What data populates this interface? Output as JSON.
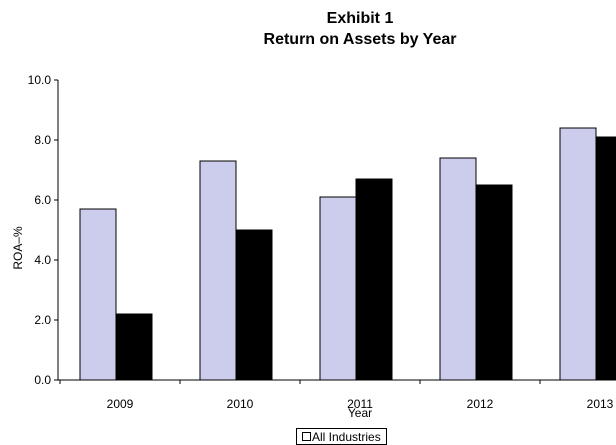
{
  "chart_data": {
    "type": "bar",
    "title_line1": "Exhibit 1",
    "title_line2": "Return on Assets by Year",
    "xlabel": "Year",
    "ylabel": "ROA–%",
    "ylim": [
      0,
      10
    ],
    "yticks": [
      "0.0",
      "2.0",
      "4.0",
      "6.0",
      "8.0",
      "10.0"
    ],
    "categories": [
      "2009",
      "2010",
      "2011",
      "2012",
      "2013"
    ],
    "series": [
      {
        "name": "All Industries",
        "values": [
          5.7,
          7.3,
          6.1,
          7.4,
          8.4
        ],
        "color": "#ccccec"
      },
      {
        "values": [
          2.2,
          5.0,
          6.7,
          6.5,
          8.1
        ],
        "color": "#000000"
      }
    ],
    "grid": false,
    "legend_position": "bottom"
  }
}
